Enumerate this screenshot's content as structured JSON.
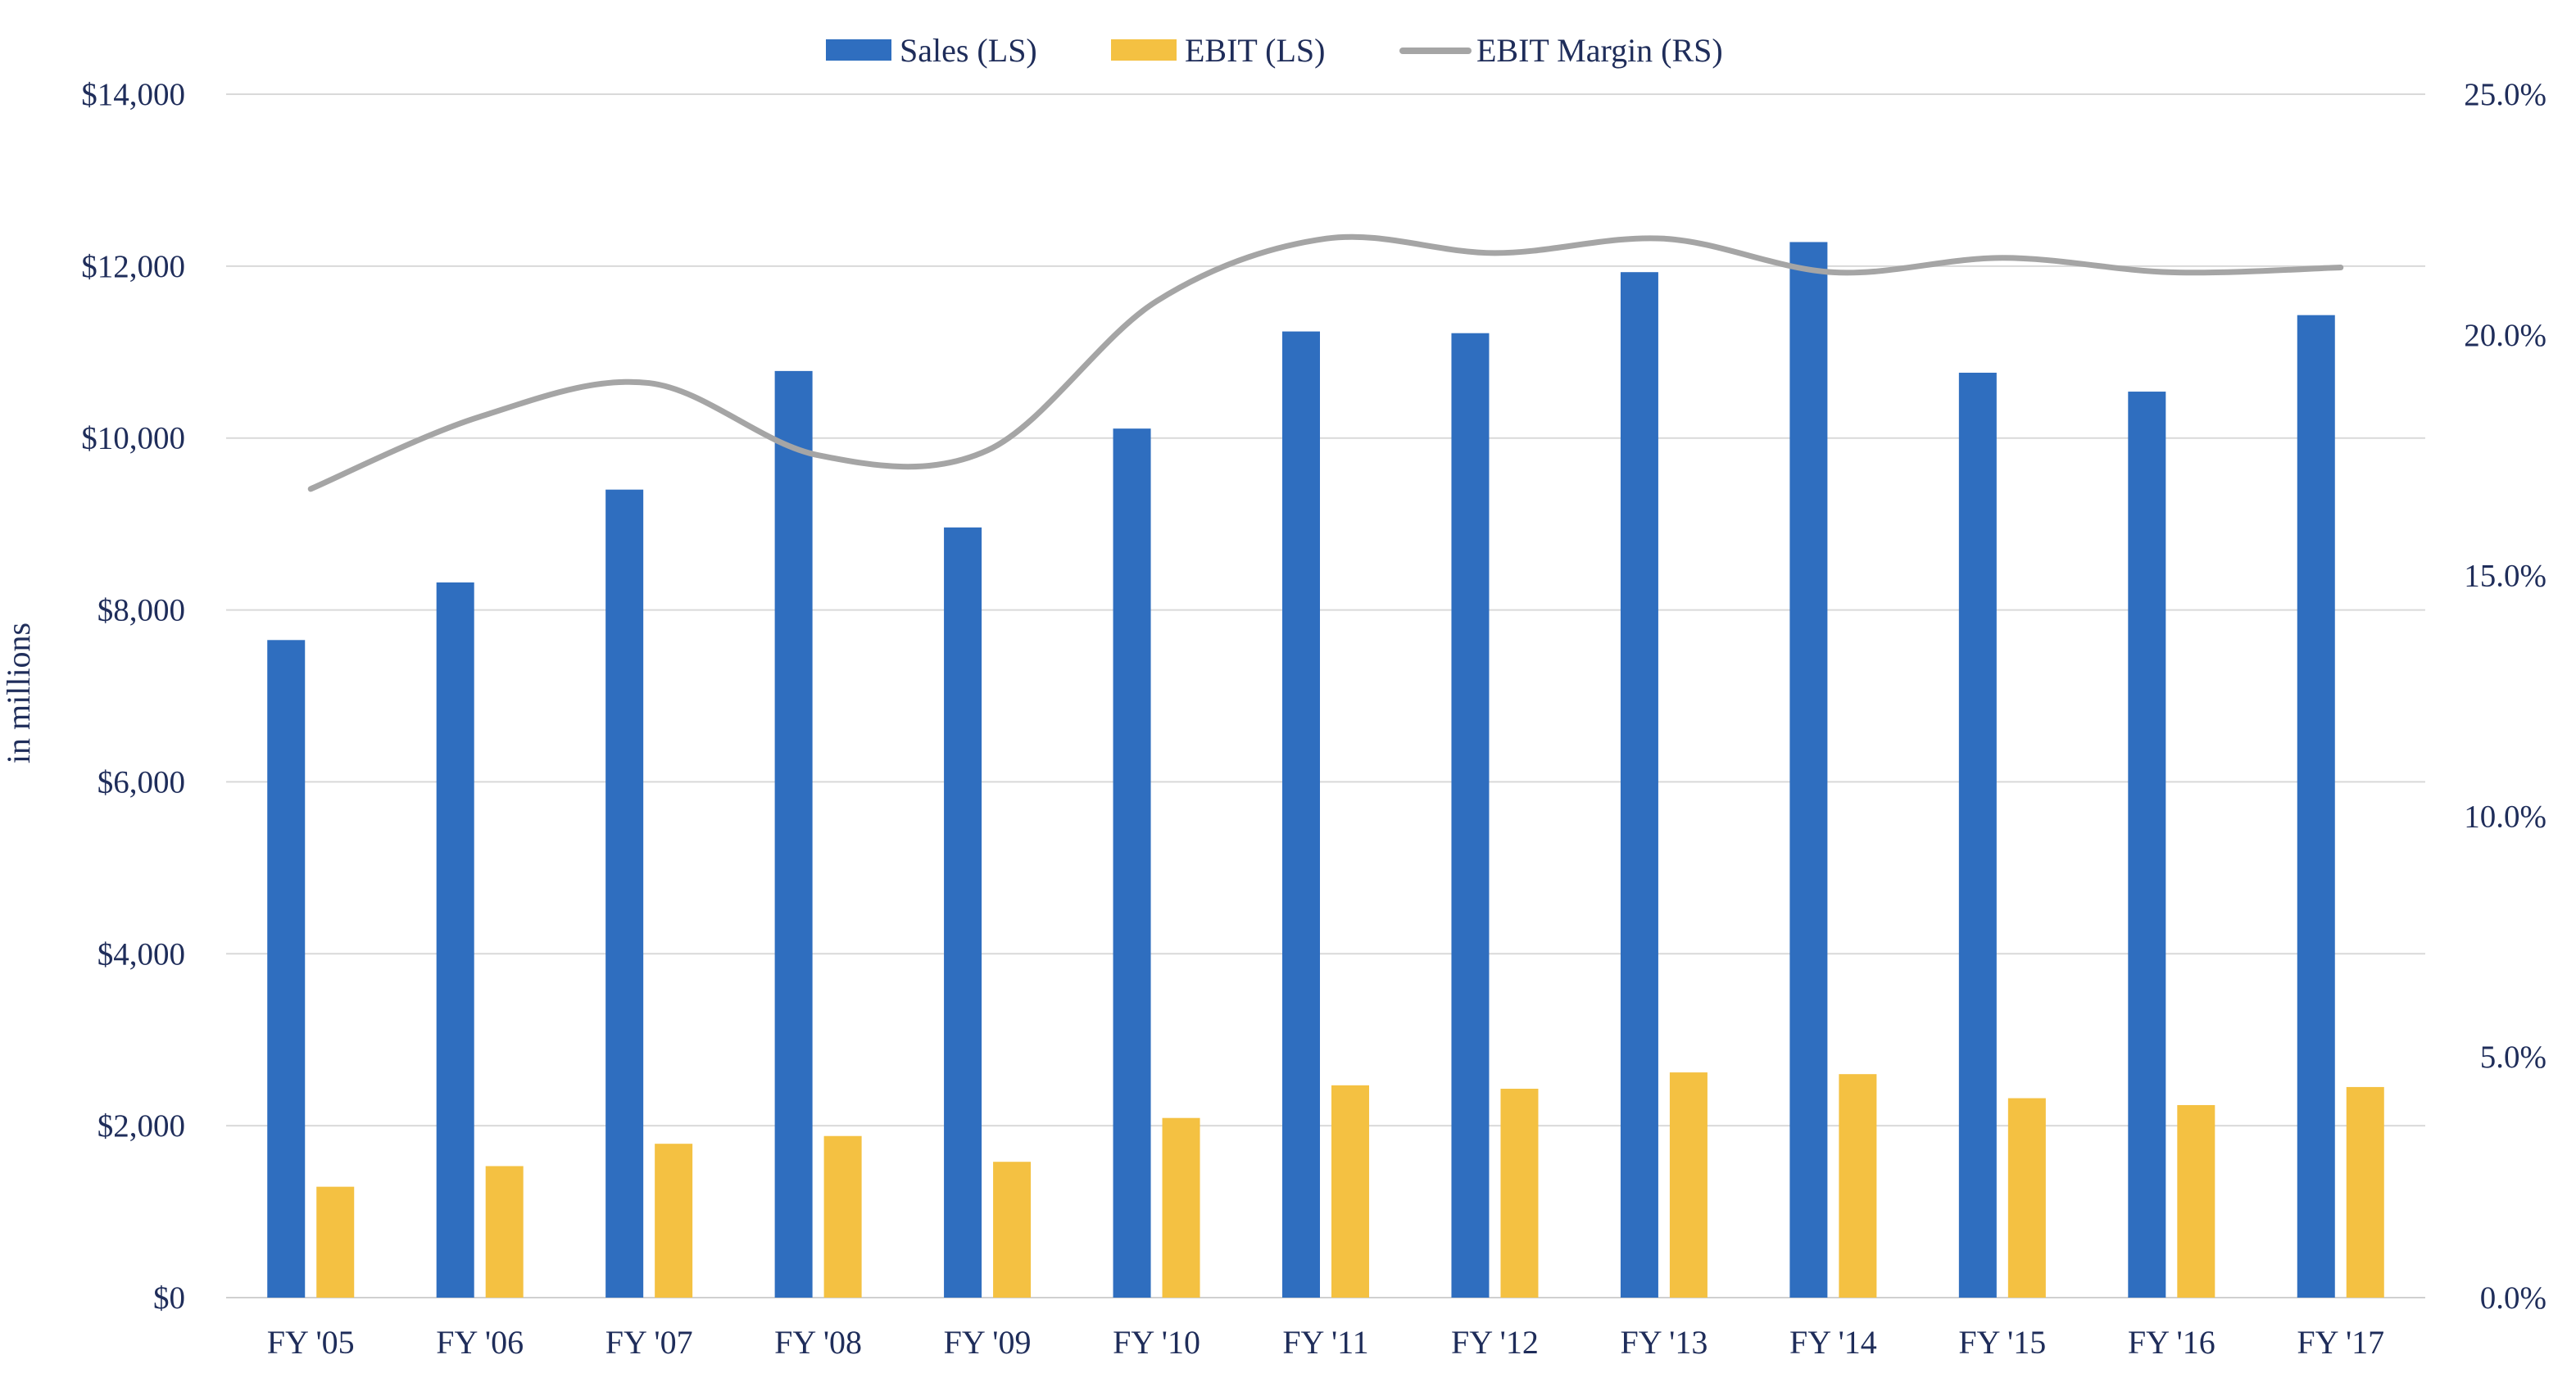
{
  "chart_data": {
    "type": "bar",
    "categories": [
      "FY '05",
      "FY '06",
      "FY '07",
      "FY '08",
      "FY '09",
      "FY '10",
      "FY '11",
      "FY '12",
      "FY '13",
      "FY '14",
      "FY '15",
      "FY '16",
      "FY '17"
    ],
    "series": [
      {
        "name": "Sales (LS)",
        "type": "bar",
        "axis": "left",
        "color": "#2f6ebf",
        "values": [
          7650,
          8320,
          9400,
          10780,
          8960,
          10110,
          11240,
          11220,
          11930,
          12280,
          10760,
          10540,
          11430
        ]
      },
      {
        "name": "EBIT (LS)",
        "type": "bar",
        "axis": "left",
        "color": "#f4c142",
        "values": [
          1290,
          1530,
          1790,
          1880,
          1580,
          2090,
          2470,
          2430,
          2620,
          2600,
          2320,
          2240,
          2450
        ]
      },
      {
        "name": "EBIT Margin (RS)",
        "type": "line",
        "axis": "right",
        "color": "#a5a5a5",
        "values": [
          16.8,
          18.3,
          19.0,
          17.5,
          17.6,
          20.7,
          22.0,
          21.7,
          22.0,
          21.3,
          21.6,
          21.3,
          21.4
        ]
      }
    ],
    "title": "",
    "xlabel": "",
    "ylabel": "in millions",
    "y_left": {
      "min": 0,
      "max": 14000,
      "ticks": [
        0,
        2000,
        4000,
        6000,
        8000,
        10000,
        12000,
        14000
      ],
      "tick_labels": [
        "$0",
        "$2,000",
        "$4,000",
        "$6,000",
        "$8,000",
        "$10,000",
        "$12,000",
        "$14,000"
      ]
    },
    "y_right": {
      "min": 0,
      "max": 25,
      "ticks": [
        0,
        5,
        10,
        15,
        20,
        25
      ],
      "tick_labels": [
        "0.0%",
        "5.0%",
        "10.0%",
        "15.0%",
        "20.0%",
        "25.0%"
      ]
    },
    "grid": true,
    "legend_position": "top-center"
  }
}
